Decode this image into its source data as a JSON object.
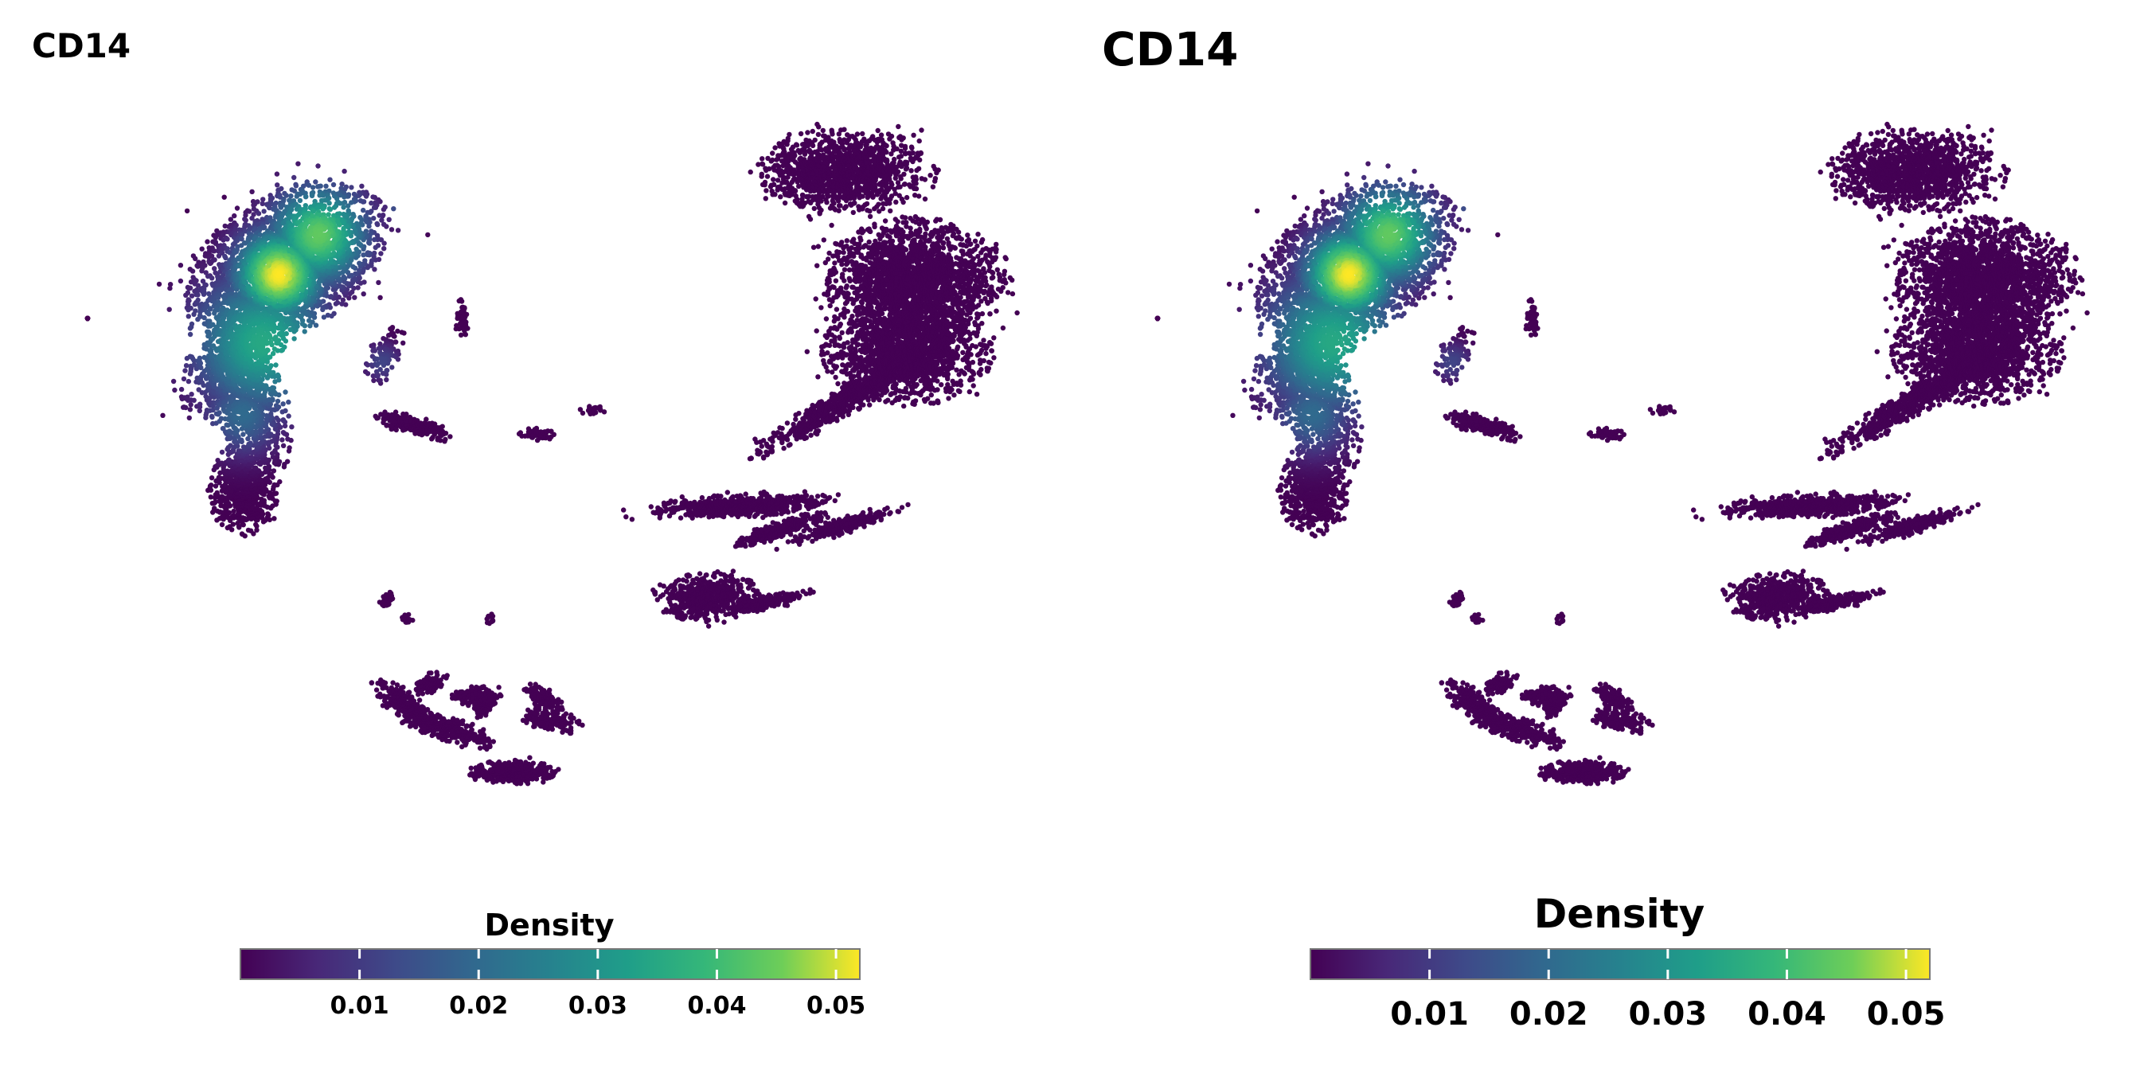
{
  "chart_data": [
    {
      "type": "scatter",
      "title": "CD14",
      "xlabel": "",
      "ylabel": "",
      "grid": false,
      "axes_visible": false,
      "colormap": "viridis",
      "colorbar": {
        "title": "Density",
        "placement": "bottom-center",
        "range": [
          0.0,
          0.052
        ],
        "ticks": [
          "0.01",
          "0.02",
          "0.03",
          "0.04",
          "0.05"
        ],
        "tick_values": [
          0.01,
          0.02,
          0.03,
          0.04,
          0.05
        ]
      }
    },
    {
      "type": "scatter",
      "title": "CD14",
      "xlabel": "",
      "ylabel": "",
      "grid": false,
      "axes_visible": false,
      "colormap": "viridis",
      "colorbar": {
        "title": "Density",
        "placement": "bottom-center",
        "range": [
          0.0,
          0.052
        ],
        "ticks": [
          "0.01",
          "0.02",
          "0.03",
          "0.04",
          "0.05"
        ],
        "tick_values": [
          0.01,
          0.02,
          0.03,
          0.04,
          0.05
        ]
      }
    }
  ],
  "colors": {
    "viridis_low": "#440154",
    "viridis_mid": "#21918c",
    "viridis_high": "#fde725",
    "background": "#ffffff"
  }
}
